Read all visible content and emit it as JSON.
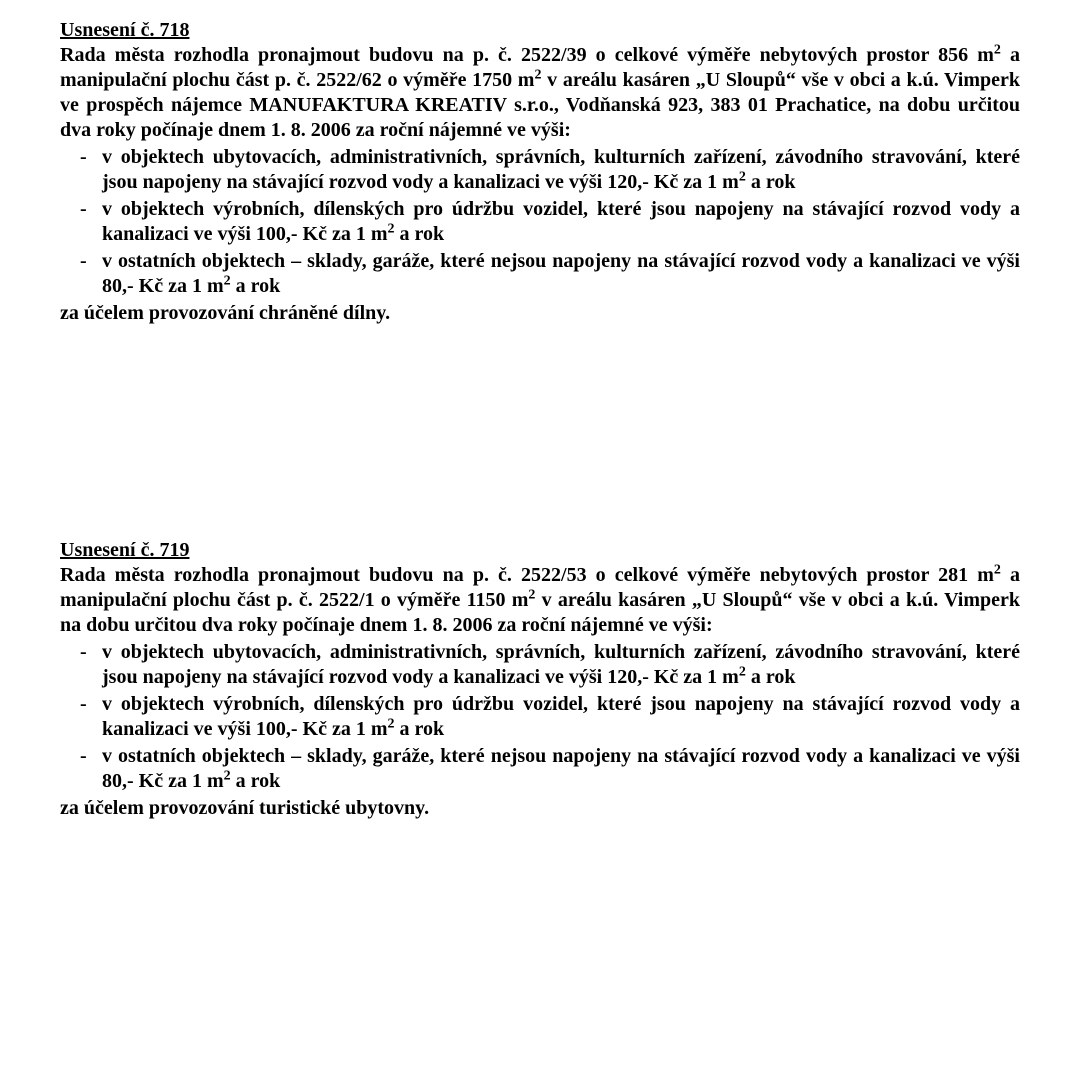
{
  "resolutions": [
    {
      "title": "Usnesení č. 718",
      "intro": "Rada města rozhodla pronajmout budovu na p. č. 2522/39 o celkové výměře nebytových prostor 856 m² a manipulační plochu část p. č. 2522/62 o výměře 1750 m² v areálu kasáren „U Sloupů“ vše v obci a k.ú. Vimperk ve prospěch nájemce MANUFAKTURA KREATIV s.r.o., Vodňanská 923, 383 01 Prachatice, na dobu určitou dva roky počínaje dnem 1. 8. 2006 za roční nájemné ve výši:",
      "bullets": [
        "v objektech ubytovacích, administrativních, správních, kulturních zařízení, závodního stravování, které jsou napojeny na stávající rozvod vody a kanalizaci ve výši 120,- Kč za 1 m² a rok",
        "v objektech výrobních, dílenských pro údržbu vozidel, které jsou napojeny na stávající rozvod vody a kanalizaci ve výši 100,- Kč za 1 m² a rok",
        "v ostatních objektech – sklady, garáže, které nejsou napojeny na stávající rozvod vody a kanalizaci ve výši 80,- Kč za 1 m² a rok"
      ],
      "closing": "za účelem provozování chráněné dílny."
    },
    {
      "title": "Usnesení č. 719",
      "intro": "Rada města rozhodla pronajmout budovu na p. č. 2522/53 o celkové výměře nebytových prostor 281 m² a manipulační plochu část p. č. 2522/1 o výměře 1150 m² v areálu kasáren „U Sloupů“ vše v obci a k.ú. Vimperk na dobu určitou dva roky počínaje dnem 1. 8. 2006 za roční nájemné ve výši:",
      "bullets": [
        "v objektech ubytovacích, administrativních, správních, kulturních zařízení, závodního stravování, které jsou napojeny na stávající rozvod vody a kanalizaci ve výši 120,- Kč za 1 m² a rok",
        "v objektech výrobních, dílenských pro údržbu vozidel, které jsou napojeny na stávající rozvod vody a kanalizaci ve výši 100,- Kč za 1 m² a rok",
        "v ostatních objektech – sklady, garáže, které nejsou napojeny na stávající rozvod vody a kanalizaci ve výši 80,- Kč za 1 m² a rok"
      ],
      "closing": "za účelem provozování turistické ubytovny."
    }
  ]
}
